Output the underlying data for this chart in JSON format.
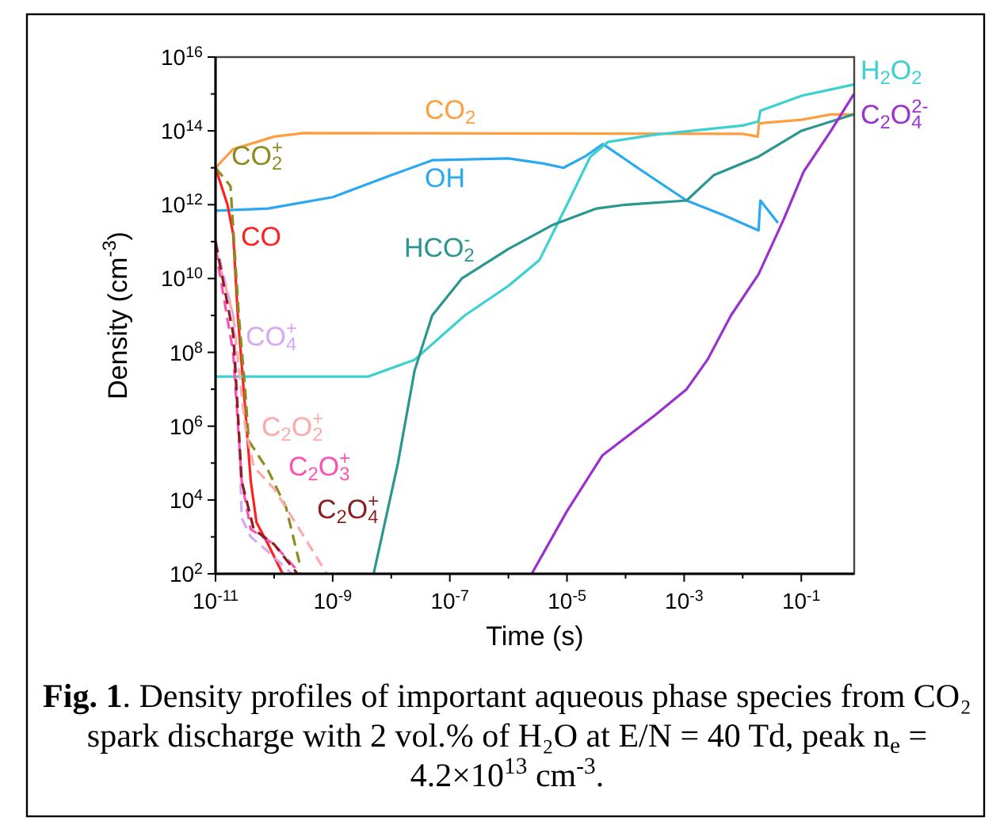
{
  "chart_data": {
    "type": "line",
    "xlabel": "Time (s)",
    "ylabel": "Density (cm$^{-3}$)",
    "log": "xy",
    "xlim": [
      1e-11,
      0.8
    ],
    "ylim": [
      100.0,
      1e+16
    ],
    "xticks": [
      {
        "value": 1e-11,
        "label": "10$^{-11}$"
      },
      {
        "value": 1e-10,
        "label": null
      },
      {
        "value": 1e-09,
        "label": "10$^{-9}$"
      },
      {
        "value": 1e-08,
        "label": null
      },
      {
        "value": 1e-07,
        "label": "10$^{-7}$"
      },
      {
        "value": 1e-06,
        "label": null
      },
      {
        "value": 1e-05,
        "label": "10$^{-5}$"
      },
      {
        "value": 0.0001,
        "label": null
      },
      {
        "value": 0.001,
        "label": "10$^{-3}$"
      },
      {
        "value": 0.01,
        "label": null
      },
      {
        "value": 0.1,
        "label": "10$^{-1}$"
      }
    ],
    "yticks": [
      {
        "value": 100.0,
        "label": "10$^{2}$"
      },
      {
        "value": 1000.0,
        "label": null
      },
      {
        "value": 10000.0,
        "label": "10$^{4}$"
      },
      {
        "value": 100000.0,
        "label": null
      },
      {
        "value": 1000000.0,
        "label": "10$^{6}$"
      },
      {
        "value": 10000000.0,
        "label": null
      },
      {
        "value": 100000000.0,
        "label": "10$^{8}$"
      },
      {
        "value": 1000000000.0,
        "label": null
      },
      {
        "value": 10000000000.0,
        "label": "10$^{10}$"
      },
      {
        "value": 100000000000.0,
        "label": null
      },
      {
        "value": 1000000000000.0,
        "label": "10$^{12}$"
      },
      {
        "value": 10000000000000.0,
        "label": null
      },
      {
        "value": 100000000000000.0,
        "label": "10$^{14}$"
      },
      {
        "value": 1000000000000000.0,
        "label": null
      },
      {
        "value": 1e+16,
        "label": "10$^{16}$"
      }
    ],
    "series": [
      {
        "name": "CO$_{2}$",
        "color": "#ff9e40",
        "x": [
          1e-11,
          2e-11,
          1e-10,
          3.2e-10,
          0.01,
          0.018,
          0.019,
          0.1,
          0.32,
          0.79
        ],
        "values": [
          10000000000000.0,
          32000000000000.0,
          70000000000000.0,
          87000000000000.0,
          83000000000000.0,
          70000000000000.0,
          160000000000000.0,
          200000000000000.0,
          280000000000000.0,
          280000000000000.0
        ]
      },
      {
        "name": "OH",
        "color": "#2aa8f0",
        "x": [
          1e-11,
          7.9e-11,
          1e-09,
          1e-08,
          5e-08,
          1e-06,
          4e-06,
          8.7e-06,
          2e-05,
          4.1e-05,
          0.0002,
          0.0011,
          0.005,
          0.0186,
          0.02,
          0.04
        ],
        "values": [
          690000000000.0,
          790000000000.0,
          1600000000000.0,
          6300000000000.0,
          16000000000000.0,
          18000000000000.0,
          13000000000000.0,
          10000000000000.0,
          20000000000000.0,
          44000000000000.0,
          7900000000000.0,
          1300000000000.0,
          500000000000.0,
          200000000000.0,
          1300000000000.0,
          320000000000.0
        ]
      },
      {
        "name": "CO",
        "color": "#ff2020",
        "x": [
          1e-11,
          1.6e-11,
          2e-11,
          2.4e-11,
          3.2e-11,
          4e-11,
          5e-11,
          7.9e-11,
          1.4e-10
        ],
        "values": [
          10000000000000.0,
          1000000000000.0,
          160000000000.0,
          1000000000.0,
          3200000.0,
          32000.0,
          2500.0,
          630.0,
          100.0
        ]
      },
      {
        "name": "H$_{2}$O$_{2}$",
        "color": "#3cd0d0",
        "x": [
          1e-11,
          4e-09,
          2.5e-08,
          1.8e-07,
          1e-06,
          3.4e-06,
          1e-05,
          2.5e-05,
          5e-05,
          0.00032,
          0.01,
          0.0186,
          0.02,
          0.1,
          0.79
        ],
        "values": [
          22000000.0,
          22000000.0,
          63000000.0,
          1000000000.0,
          6300000000.0,
          32000000000.0,
          1000000000000.0,
          20000000000000.0,
          50000000000000.0,
          79000000000000.0,
          140000000000000.0,
          180000000000000.0,
          350000000000000.0,
          890000000000000.0,
          1800000000000000.0
        ]
      },
      {
        "name": "HCO$_{2}$$^{-}$",
        "color": "#2a9690",
        "x": [
          5e-09,
          1.3e-08,
          2.5e-08,
          5e-08,
          1.6e-07,
          1e-06,
          5.6e-06,
          3.2e-05,
          0.0001,
          0.0011,
          0.0032,
          0.0186,
          0.1,
          0.79
        ],
        "values": [
          100.0,
          100000.0,
          32000000.0,
          1000000000.0,
          10000000000.0,
          63000000000.0,
          280000000000.0,
          790000000000.0,
          1000000000000.0,
          1300000000000.0,
          6300000000000.0,
          20000000000000.0,
          100000000000000.0,
          280000000000000.0
        ]
      },
      {
        "name": "C$_{2}$O$_{4}$$^{2-}$",
        "color": "#9b30d0",
        "x": [
          2.5e-06,
          1e-05,
          4e-05,
          0.00032,
          0.0011,
          0.0025,
          0.0063,
          0.0186,
          0.05,
          0.11,
          0.32,
          0.79
        ],
        "values": [
          100.0,
          5000.0,
          160000.0,
          2000000.0,
          10000000.0,
          63000000.0,
          1000000000.0,
          13000000000.0,
          400000000000.0,
          7900000000000.0,
          100000000000000.0,
          1000000000000000.0
        ]
      },
      {
        "name": "CO$_{2}$$^{+}$",
        "color": "#8c8c1e",
        "line_style": "dashed",
        "x": [
          1e-11,
          1.8e-11,
          2.5e-11,
          3.2e-11,
          3.7e-11,
          7.9e-11,
          1.6e-10,
          2.8e-10
        ],
        "values": [
          10000000000000.0,
          3200000000000.0,
          1000000000.0,
          10000000.0,
          400000.0,
          63000.0,
          6300.0,
          160.0
        ]
      },
      {
        "name": "CO$_{4}$$^{+}$",
        "color": "#d6a8f5",
        "line_style": "dashed",
        "x": [
          1e-11,
          2e-11,
          2.5e-11,
          2.8e-11,
          4e-11,
          7.9e-11,
          2e-10
        ],
        "values": [
          100000000000.0,
          1000000000.0,
          1000000.0,
          3200.0,
          1000.0,
          400.0,
          100.0
        ]
      },
      {
        "name": "C$_{2}$O$_{2}$$^{+}$",
        "color": "#ffaaaa",
        "line_style": "dashed",
        "x": [
          1e-11,
          2e-11,
          3.2e-11,
          4.5e-11,
          1e-10,
          2.5e-10,
          7.9e-10
        ],
        "values": [
          63000000000.0,
          1000000000.0,
          1000000.0,
          79000.0,
          20000.0,
          2000.0,
          100.0
        ]
      },
      {
        "name": "C$_{2}$O$_{3}$$^{+}$",
        "color": "#ff4fb4",
        "line_style": "dashed",
        "x": [
          1e-11,
          2e-11,
          2.8e-11,
          4e-11,
          1e-10,
          2.8e-10
        ],
        "values": [
          63000000000.0,
          100000000.0,
          32000.0,
          1600.0,
          630.0,
          100.0
        ]
      },
      {
        "name": "C$_{2}$O$_{4}$$^{+}$",
        "color": "#8b1e1e",
        "line_style": "dashed",
        "x": [
          1e-11,
          2e-11,
          2.8e-11,
          4.5e-11,
          1e-10,
          2.5e-10
        ],
        "values": [
          100000000000.0,
          320000000.0,
          32000.0,
          1600.0,
          630.0,
          100.0
        ]
      }
    ],
    "annotations": [
      "Fig. 1. Density profiles of important aqueous phase species from CO₂ spark discharge with 2 vol.% of H₂O at E/N = 40 Td, peak n$_{e}$ = 4.2×10$^{13}$ cm$^{-3}$."
    ]
  }
}
